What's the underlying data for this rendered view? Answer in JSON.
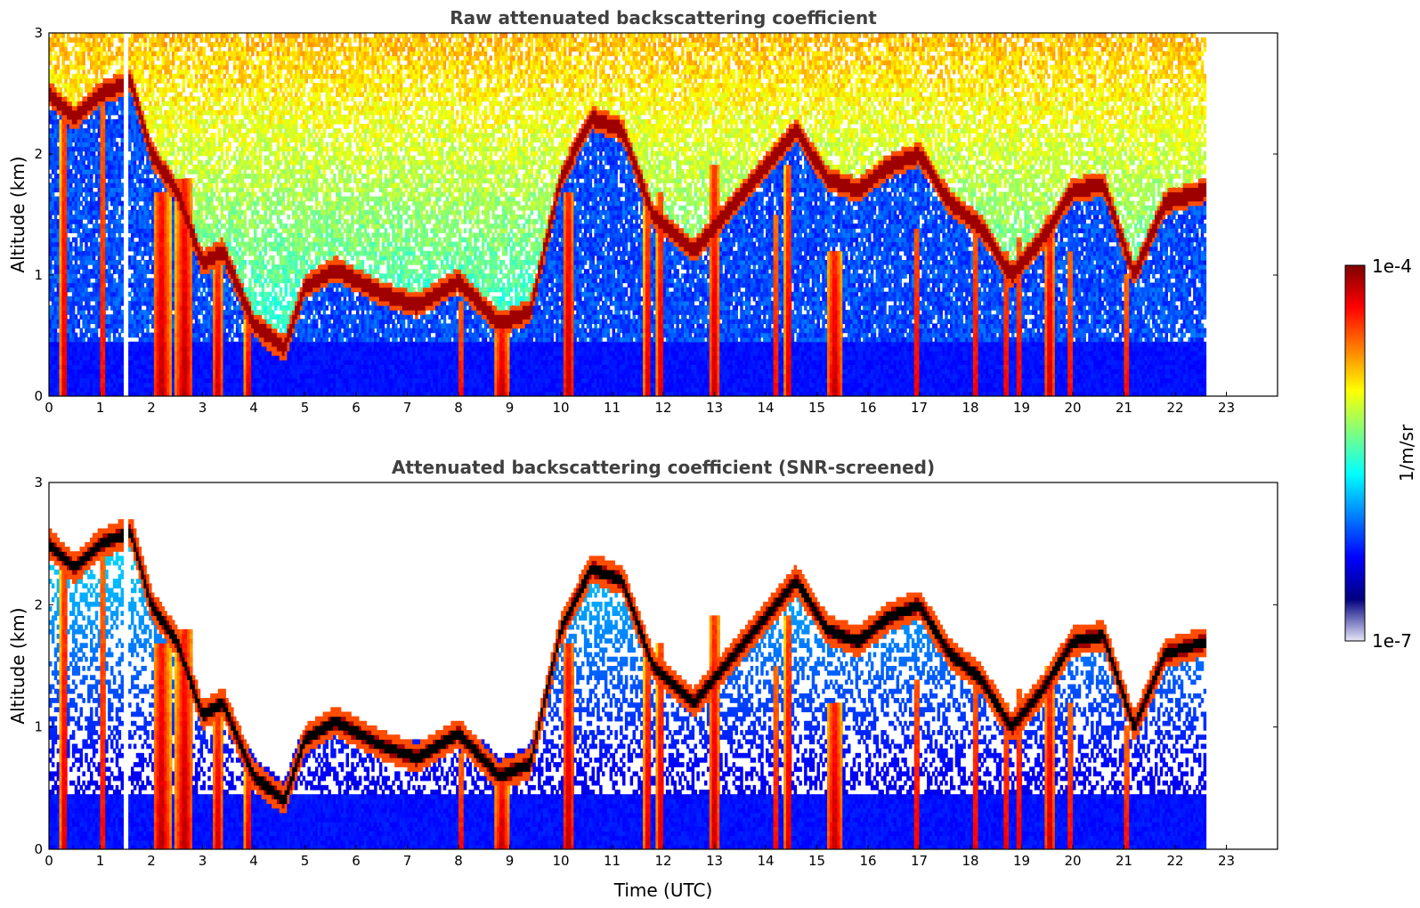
{
  "colors": {
    "jet": [
      "#00007f",
      "#0000ff",
      "#007fff",
      "#00ffff",
      "#7fff7f",
      "#ffff00",
      "#ff7f00",
      "#ff0000",
      "#7f0000"
    ],
    "low_end": "#e6e6f8",
    "noise_low": "#1a3cff",
    "screened_layer": "#000000",
    "title": "#404040"
  },
  "chart_data": [
    {
      "type": "heatmap",
      "title": "Raw attenuated backscattering coefficient",
      "xlabel": "",
      "ylabel": "Altitude (km)",
      "xlim": [
        0,
        24
      ],
      "ylim": [
        0,
        3
      ],
      "x_ticks": [
        "0",
        "1",
        "2",
        "3",
        "4",
        "5",
        "6",
        "7",
        "8",
        "9",
        "10",
        "11",
        "12",
        "13",
        "14",
        "15",
        "16",
        "17",
        "18",
        "19",
        "20",
        "21",
        "22",
        "23"
      ],
      "y_ticks": [
        "0",
        "1",
        "2",
        "3"
      ],
      "data_time_range": [
        0,
        22.6
      ],
      "missing_data_interval": [
        1.45,
        1.55
      ],
      "screened": false
    },
    {
      "type": "heatmap",
      "title": "Attenuated backscattering coefficient (SNR-screened)",
      "xlabel": "Time (UTC)",
      "ylabel": "Altitude (km)",
      "xlim": [
        0,
        24
      ],
      "ylim": [
        0,
        3
      ],
      "x_ticks": [
        "0",
        "1",
        "2",
        "3",
        "4",
        "5",
        "6",
        "7",
        "8",
        "9",
        "10",
        "11",
        "12",
        "13",
        "14",
        "15",
        "16",
        "17",
        "18",
        "19",
        "20",
        "21",
        "22",
        "23"
      ],
      "y_ticks": [
        "0",
        "1",
        "2",
        "3"
      ],
      "data_time_range": [
        0,
        22.6
      ],
      "missing_data_interval": [
        1.45,
        1.55
      ],
      "screened": true
    }
  ],
  "colorbar": {
    "label": "1/m/sr",
    "max_label": "1e-4",
    "min_label": "1e-7",
    "scale": "log",
    "range": [
      1e-07,
      0.0001
    ]
  },
  "layer_trace": {
    "time_utc": [
      0,
      0.5,
      1,
      1.6,
      2,
      2.5,
      3,
      3.4,
      4,
      4.6,
      5,
      5.6,
      6.5,
      7.2,
      8,
      8.8,
      9.4,
      10,
      10.6,
      11.2,
      11.8,
      12.6,
      13.4,
      14,
      14.6,
      15.2,
      15.8,
      16.4,
      17,
      17.6,
      18.2,
      18.8,
      19.4,
      20,
      20.6,
      21.2,
      21.8,
      22.6
    ],
    "altitude_km": [
      2.5,
      2.3,
      2.5,
      2.6,
      2.0,
      1.7,
      1.1,
      1.2,
      0.6,
      0.4,
      0.9,
      1.05,
      0.85,
      0.75,
      0.95,
      0.6,
      0.7,
      1.8,
      2.3,
      2.2,
      1.5,
      1.2,
      1.6,
      1.9,
      2.2,
      1.8,
      1.7,
      1.9,
      2.0,
      1.6,
      1.4,
      1.0,
      1.3,
      1.7,
      1.75,
      1.0,
      1.6,
      1.7
    ]
  },
  "vertical_plumes": [
    {
      "t": 0.3,
      "w": 0.15,
      "top": 2.3
    },
    {
      "t": 1.05,
      "w": 0.1,
      "top": 2.5
    },
    {
      "t": 2.2,
      "w": 0.35,
      "top": 1.7
    },
    {
      "t": 2.65,
      "w": 0.35,
      "top": 1.8
    },
    {
      "t": 3.3,
      "w": 0.2,
      "top": 1.1
    },
    {
      "t": 3.9,
      "w": 0.15,
      "top": 0.7
    },
    {
      "t": 8.05,
      "w": 0.1,
      "top": 0.8
    },
    {
      "t": 8.85,
      "w": 0.3,
      "top": 0.6
    },
    {
      "t": 10.15,
      "w": 0.25,
      "top": 1.7
    },
    {
      "t": 11.7,
      "w": 0.15,
      "top": 1.6
    },
    {
      "t": 11.95,
      "w": 0.15,
      "top": 1.7
    },
    {
      "t": 13.0,
      "w": 0.2,
      "top": 1.9
    },
    {
      "t": 14.2,
      "w": 0.1,
      "top": 1.5
    },
    {
      "t": 14.45,
      "w": 0.15,
      "top": 1.9
    },
    {
      "t": 15.35,
      "w": 0.3,
      "top": 1.2
    },
    {
      "t": 16.95,
      "w": 0.12,
      "top": 1.4
    },
    {
      "t": 18.1,
      "w": 0.12,
      "top": 1.4
    },
    {
      "t": 18.7,
      "w": 0.12,
      "top": 1.2
    },
    {
      "t": 18.95,
      "w": 0.12,
      "top": 1.3
    },
    {
      "t": 19.55,
      "w": 0.2,
      "top": 1.5
    },
    {
      "t": 19.95,
      "w": 0.1,
      "top": 1.2
    },
    {
      "t": 21.05,
      "w": 0.1,
      "top": 1.0
    }
  ]
}
